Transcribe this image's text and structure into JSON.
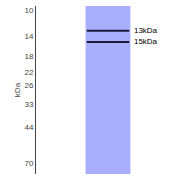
{
  "chart_data": {
    "type": "gel",
    "ylabel": "kDa",
    "values": [
      15,
      13
    ],
    "value_labels": [
      "15kDa",
      "13kDa"
    ],
    "data_labels": true,
    "color": "#1a1a3a",
    "log": "y",
    "ylim": [
      80,
      9.5
    ],
    "yticks": [
      70,
      44,
      33,
      26,
      22,
      18,
      14,
      10
    ],
    "grid": false,
    "tick_labels": "y"
  }
}
